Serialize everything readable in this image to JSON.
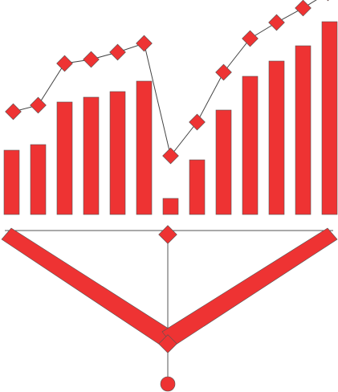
{
  "graphic": {
    "kind": "logo-illustration",
    "primary_color": "#ee3333",
    "stroke_color": "#555555",
    "bar_values": [
      80,
      87,
      140,
      146,
      153,
      166,
      20,
      68,
      130,
      172,
      191,
      210,
      240
    ],
    "line_values": [
      112,
      120,
      172,
      177,
      186,
      197,
      57,
      99,
      161,
      203,
      223,
      241,
      260
    ]
  }
}
